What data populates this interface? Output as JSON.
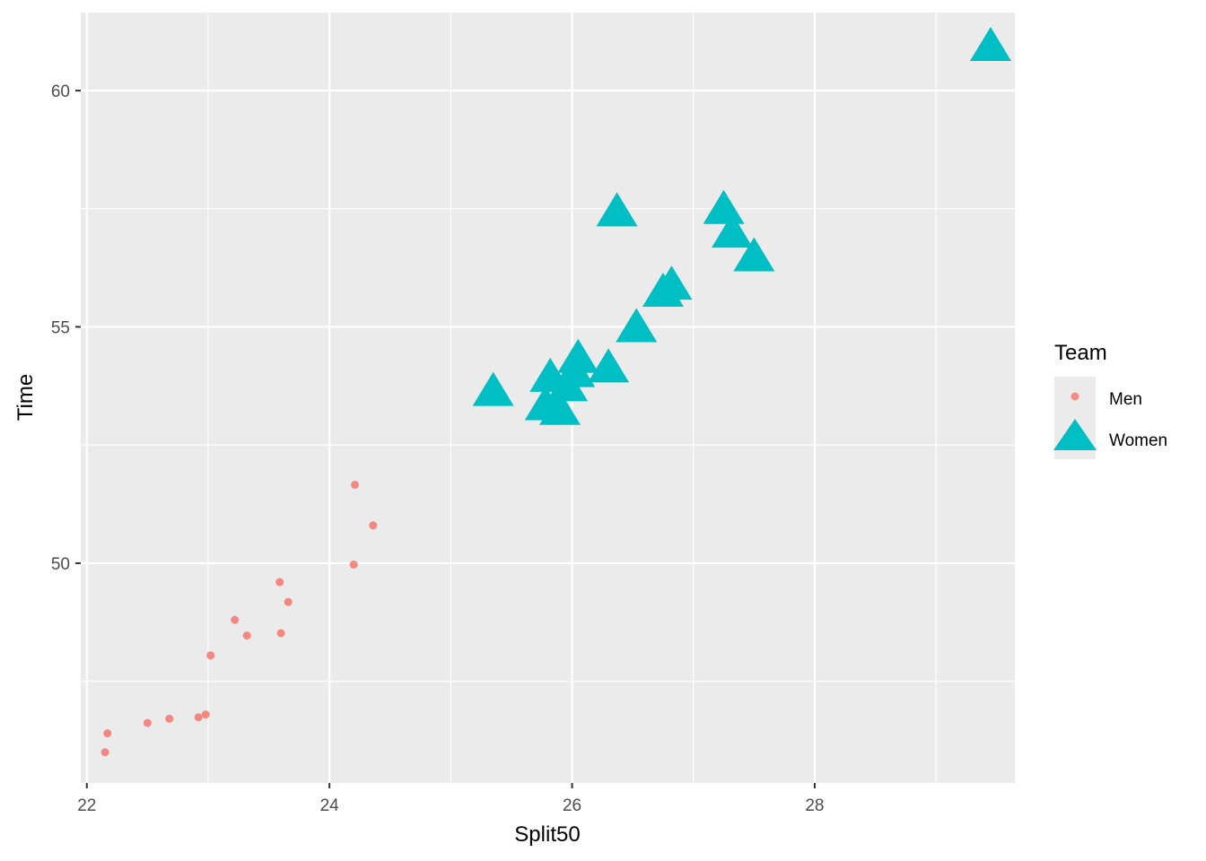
{
  "chart_data": {
    "type": "scatter",
    "xlabel": "Split50",
    "ylabel": "Time",
    "xlim": [
      21.95,
      29.65
    ],
    "ylim": [
      45.35,
      61.65
    ],
    "x_ticks": [
      22,
      24,
      26,
      28
    ],
    "x_tick_labels": [
      "22",
      "24",
      "26",
      "28"
    ],
    "y_ticks": [
      50,
      55,
      60
    ],
    "y_tick_labels": [
      "50",
      "55",
      "60"
    ],
    "grid": true,
    "legend": {
      "title": "Team",
      "position": "right"
    },
    "series": [
      {
        "name": "Men",
        "color": "#F8766D",
        "marker": "circle",
        "points": [
          {
            "x": 22.15,
            "y": 46.0
          },
          {
            "x": 22.17,
            "y": 46.4
          },
          {
            "x": 22.5,
            "y": 46.62
          },
          {
            "x": 22.68,
            "y": 46.71
          },
          {
            "x": 22.92,
            "y": 46.74
          },
          {
            "x": 22.98,
            "y": 46.8
          },
          {
            "x": 23.02,
            "y": 48.05
          },
          {
            "x": 23.22,
            "y": 48.8
          },
          {
            "x": 23.32,
            "y": 48.47
          },
          {
            "x": 23.59,
            "y": 49.6
          },
          {
            "x": 23.6,
            "y": 48.52
          },
          {
            "x": 23.66,
            "y": 49.18
          },
          {
            "x": 24.2,
            "y": 49.97
          },
          {
            "x": 24.21,
            "y": 51.66
          },
          {
            "x": 24.36,
            "y": 50.8
          }
        ]
      },
      {
        "name": "Women",
        "color": "#00BFC4",
        "marker": "triangle",
        "points": [
          {
            "x": 25.35,
            "y": 53.6
          },
          {
            "x": 25.78,
            "y": 53.3
          },
          {
            "x": 25.82,
            "y": 53.9
          },
          {
            "x": 25.9,
            "y": 53.2
          },
          {
            "x": 25.96,
            "y": 53.7
          },
          {
            "x": 26.02,
            "y": 54.0
          },
          {
            "x": 26.05,
            "y": 54.3
          },
          {
            "x": 26.3,
            "y": 54.1
          },
          {
            "x": 26.37,
            "y": 57.4
          },
          {
            "x": 26.53,
            "y": 54.95
          },
          {
            "x": 26.75,
            "y": 55.7
          },
          {
            "x": 26.82,
            "y": 55.85
          },
          {
            "x": 27.25,
            "y": 57.45
          },
          {
            "x": 27.32,
            "y": 56.95
          },
          {
            "x": 27.5,
            "y": 56.45
          },
          {
            "x": 29.45,
            "y": 60.9
          }
        ]
      }
    ]
  }
}
